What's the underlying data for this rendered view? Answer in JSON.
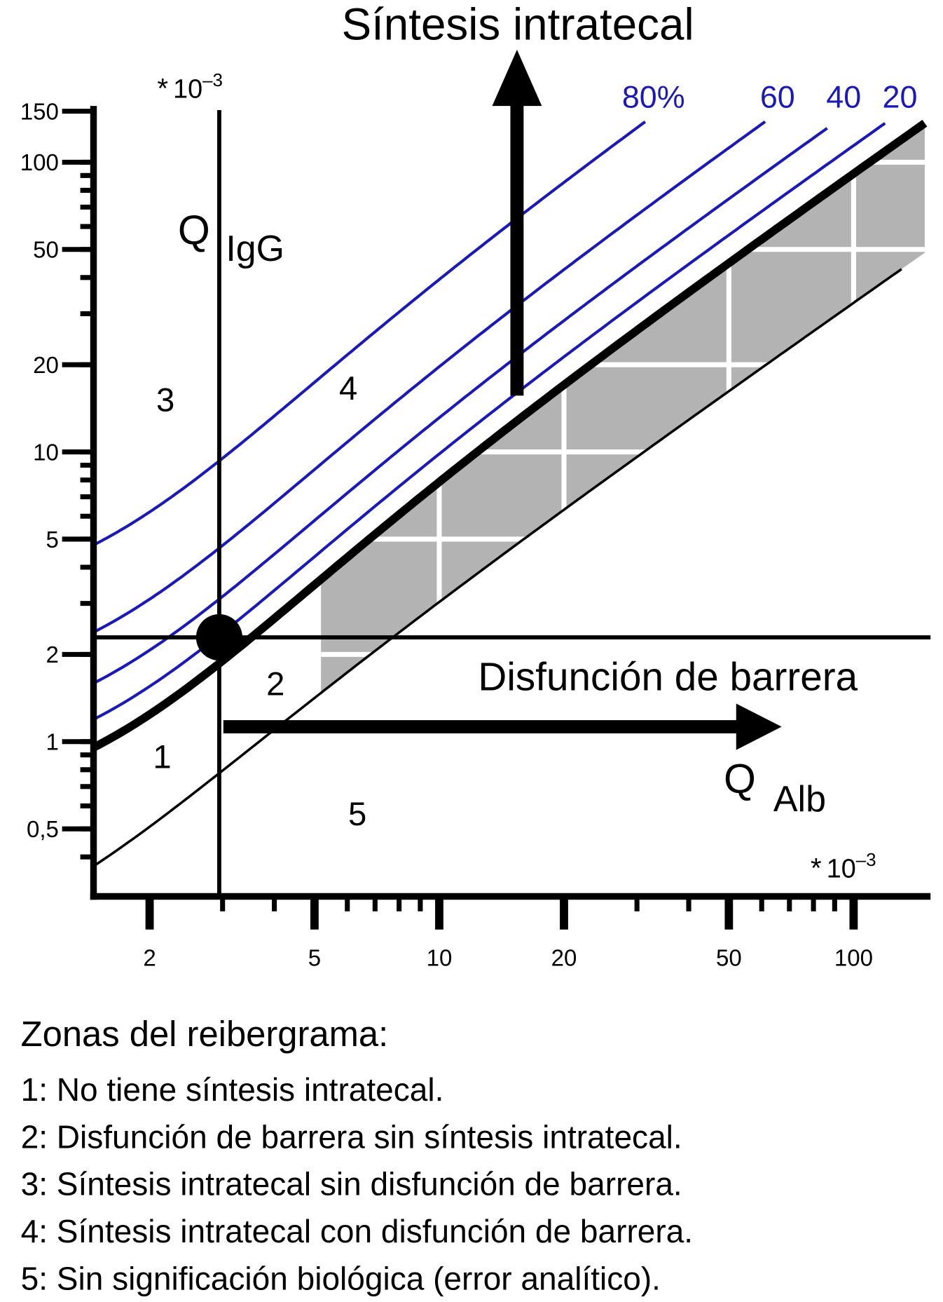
{
  "title": "Síntesis intratecal",
  "y_axis": {
    "label_main": "Q",
    "label_sub": "IgG",
    "multiplier": {
      "prefix": "*",
      "base": "10",
      "exponent": "–3"
    },
    "ticks": [
      {
        "value": 0.5,
        "label": "0,5"
      },
      1,
      2,
      5,
      10,
      20,
      50,
      100,
      150
    ]
  },
  "x_axis": {
    "label_main": "Q",
    "label_sub": "Alb",
    "multiplier": {
      "prefix": "*",
      "base": "10",
      "exponent": "–3"
    },
    "ticks": [
      2,
      5,
      10,
      20,
      50,
      100
    ]
  },
  "curves": [
    "80%",
    "60",
    "40",
    "20"
  ],
  "barrier_label": "Disfunción de barrera",
  "zones": [
    "1",
    "2",
    "3",
    "4",
    "5"
  ],
  "legend": {
    "title": "Zonas del reibergrama:",
    "items": [
      "1: No tiene síntesis intratecal.",
      "2: Disfunción de barrera sin síntesis intratecal.",
      "3: Síntesis intratecal sin disfunción de barrera.",
      "4: Síntesis intratecal con disfunción de barrera.",
      "5: Sin significación biológica (error analítico)."
    ]
  }
}
